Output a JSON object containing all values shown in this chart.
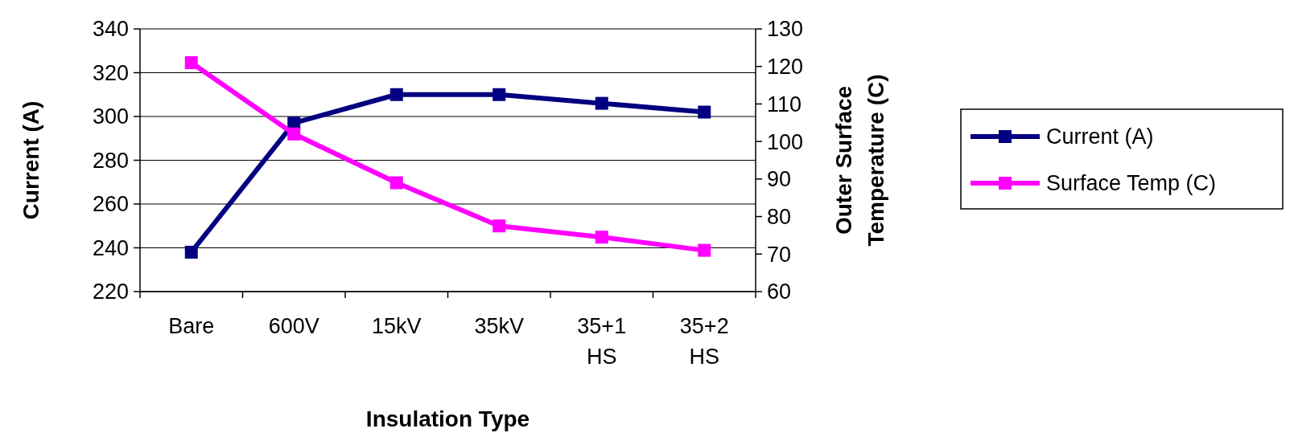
{
  "chart_data": {
    "type": "line",
    "xlabel": "Insulation Type",
    "ylabel": "Current (A)",
    "y2label": "Outer Surface Temperature (C)",
    "categories": [
      "Bare",
      "600V",
      "15kV",
      "35kV",
      "35+1 HS",
      "35+2 HS"
    ],
    "series": [
      {
        "name": "Current (A)",
        "color": "#000080",
        "values": [
          238,
          297,
          310,
          310,
          306,
          302
        ]
      },
      {
        "name": "Surface Temp (C)",
        "color": "#ff00ff",
        "axis": "y2",
        "values": [
          121,
          102,
          89,
          77.5,
          74.5,
          71
        ]
      }
    ],
    "ylim": [
      220,
      340
    ],
    "yticks": [
      220,
      240,
      260,
      280,
      300,
      320,
      340
    ],
    "y2lim": [
      60,
      130
    ],
    "y2ticks": [
      60,
      70,
      80,
      90,
      100,
      110,
      120,
      130
    ],
    "grid": "y",
    "legend": "right",
    "marker": "square",
    "line_style": "solid"
  }
}
